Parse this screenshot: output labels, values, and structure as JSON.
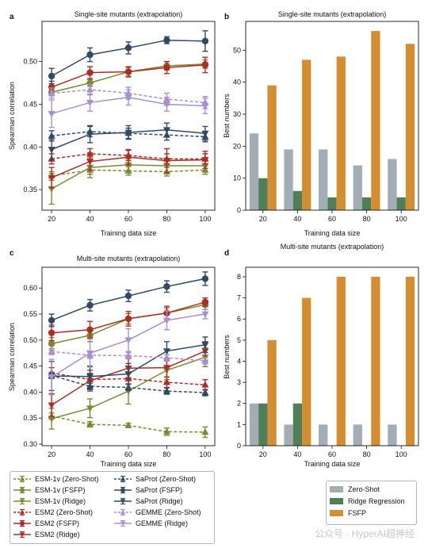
{
  "chart_data": [
    {
      "panel": "a",
      "type": "line",
      "title": "Single-site mutants (extrapolation)",
      "xlabel": "Training data size",
      "ylabel": "Spearman correlation",
      "x": [
        20,
        40,
        60,
        80,
        100
      ],
      "xlim": [
        15,
        105
      ],
      "ylim": [
        0.326,
        0.547
      ],
      "yticks": [
        0.35,
        0.4,
        0.45,
        0.5
      ],
      "yticklabels": [
        "0.35",
        "0.40",
        "0.45",
        "0.50"
      ],
      "xticks": [
        20,
        40,
        60,
        80,
        100
      ],
      "series": [
        {
          "name": "ESM-1v (Zero-Shot)",
          "values": [
            0.366,
            0.373,
            0.372,
            0.371,
            0.373
          ],
          "err": [
            0.005,
            0.005,
            0.005,
            0.005,
            0.005
          ],
          "color": "#7b8a2e",
          "dash": true,
          "marker": "tri-up"
        },
        {
          "name": "ESM-1v (FSFP)",
          "values": [
            0.464,
            0.475,
            0.488,
            0.495,
            0.497
          ],
          "err": [
            0.004,
            0.004,
            0.005,
            0.005,
            0.005
          ],
          "color": "#7b8a2e",
          "dash": false,
          "marker": "circle"
        },
        {
          "name": "ESM-1v (Ridge)",
          "values": [
            0.351,
            0.376,
            0.379,
            0.378,
            0.378
          ],
          "err": [
            0.018,
            0.012,
            0.007,
            0.007,
            0.007
          ],
          "color": "#7b8a2e",
          "dash": false,
          "marker": "tri-down"
        },
        {
          "name": "ESM2 (Zero-Shot)",
          "values": [
            0.386,
            0.392,
            0.39,
            0.386,
            0.386
          ],
          "err": [
            0.006,
            0.006,
            0.006,
            0.006,
            0.006
          ],
          "color": "#b22a24",
          "dash": true,
          "marker": "tri-up"
        },
        {
          "name": "ESM2 (FSFP)",
          "values": [
            0.47,
            0.487,
            0.488,
            0.493,
            0.496
          ],
          "err": [
            0.007,
            0.007,
            0.006,
            0.007,
            0.009
          ],
          "color": "#b22a24",
          "dash": false,
          "marker": "circle"
        },
        {
          "name": "ESM2 (Ridge)",
          "values": [
            0.364,
            0.383,
            0.388,
            0.384,
            0.385
          ],
          "err": [
            0.012,
            0.01,
            0.009,
            0.014,
            0.01
          ],
          "color": "#b22a24",
          "dash": false,
          "marker": "tri-down"
        },
        {
          "name": "SaProt (Zero-Shot)",
          "values": [
            0.413,
            0.418,
            0.416,
            0.414,
            0.412
          ],
          "err": [
            0.006,
            0.006,
            0.006,
            0.006,
            0.006
          ],
          "color": "#2f4a66",
          "dash": true,
          "marker": "tri-up"
        },
        {
          "name": "SaProt (FSFP)",
          "values": [
            0.483,
            0.508,
            0.516,
            0.525,
            0.524
          ],
          "err": [
            0.009,
            0.008,
            0.007,
            0.004,
            0.012
          ],
          "color": "#2f4a66",
          "dash": false,
          "marker": "circle"
        },
        {
          "name": "SaProt (Ridge)",
          "values": [
            0.397,
            0.415,
            0.417,
            0.42,
            0.416
          ],
          "err": [
            0.012,
            0.01,
            0.008,
            0.008,
            0.008
          ],
          "color": "#2f4a66",
          "dash": false,
          "marker": "tri-down"
        },
        {
          "name": "GEMME (Zero-Shot)",
          "values": [
            0.463,
            0.467,
            0.463,
            0.456,
            0.452
          ],
          "err": [
            0.006,
            0.006,
            0.007,
            0.007,
            0.007
          ],
          "color": "#a98fd0",
          "dash": true,
          "marker": "tri-up"
        },
        {
          "name": "GEMME (Ridge)",
          "values": [
            0.439,
            0.452,
            0.458,
            0.45,
            0.448
          ],
          "err": [
            0.016,
            0.01,
            0.009,
            0.008,
            0.009
          ],
          "color": "#a98fd0",
          "dash": false,
          "marker": "tri-down"
        }
      ]
    },
    {
      "panel": "b",
      "type": "bar",
      "title": "Single-site mutants (extrapolation)",
      "xlabel": "Training data size",
      "ylabel": "Best numbers",
      "categories": [
        "20",
        "40",
        "60",
        "80",
        "100"
      ],
      "ylim": [
        0,
        59
      ],
      "yticks": [
        0,
        10,
        20,
        30,
        40,
        50
      ],
      "series": [
        {
          "name": "Zero-Shot",
          "values": [
            24,
            19,
            19,
            14,
            16
          ],
          "color": "#a2adb5"
        },
        {
          "name": "Ridge Regression",
          "values": [
            10,
            6,
            4,
            4,
            4
          ],
          "color": "#4f7f58"
        },
        {
          "name": "FSFP",
          "values": [
            39,
            47,
            48,
            56,
            52
          ],
          "color": "#d38e31"
        }
      ]
    },
    {
      "panel": "c",
      "type": "line",
      "title": "Multi-site mutants (extrapolation)",
      "xlabel": "Training data size",
      "ylabel": "Spearman correlation",
      "x": [
        20,
        40,
        60,
        80,
        100
      ],
      "xlim": [
        15,
        105
      ],
      "ylim": [
        0.297,
        0.64
      ],
      "yticks": [
        0.3,
        0.35,
        0.4,
        0.45,
        0.5,
        0.55,
        0.6
      ],
      "yticklabels": [
        "0.30",
        "0.35",
        "0.40",
        "0.45",
        "0.50",
        "0.55",
        "0.60"
      ],
      "xticks": [
        20,
        40,
        60,
        80,
        100
      ],
      "series": [
        {
          "name": "ESM-1v (Zero-Shot)",
          "values": [
            0.354,
            0.338,
            0.336,
            0.324,
            0.323
          ],
          "err": [
            0.006,
            0.005,
            0.004,
            0.007,
            0.01
          ],
          "color": "#7b8a2e",
          "dash": true,
          "marker": "tri-up"
        },
        {
          "name": "ESM-1v (FSFP)",
          "values": [
            0.493,
            0.509,
            0.541,
            0.552,
            0.568
          ],
          "err": [
            0.012,
            0.012,
            0.01,
            0.01,
            0.009
          ],
          "color": "#7b8a2e",
          "dash": false,
          "marker": "circle"
        },
        {
          "name": "ESM-1v (Ridge)",
          "values": [
            0.349,
            0.369,
            0.402,
            0.442,
            0.467
          ],
          "err": [
            0.02,
            0.018,
            0.025,
            0.018,
            0.018
          ],
          "color": "#7b8a2e",
          "dash": false,
          "marker": "tri-down"
        },
        {
          "name": "ESM2 (Zero-Shot)",
          "values": [
            0.437,
            0.424,
            0.426,
            0.419,
            0.414
          ],
          "err": [
            0.01,
            0.012,
            0.01,
            0.01,
            0.01
          ],
          "color": "#b22a24",
          "dash": true,
          "marker": "tri-up"
        },
        {
          "name": "ESM2 (FSFP)",
          "values": [
            0.514,
            0.52,
            0.541,
            0.552,
            0.573
          ],
          "err": [
            0.015,
            0.016,
            0.014,
            0.013,
            0.008
          ],
          "color": "#b22a24",
          "dash": false,
          "marker": "circle"
        },
        {
          "name": "ESM2 (Ridge)",
          "values": [
            0.375,
            0.422,
            0.446,
            0.447,
            0.479
          ],
          "err": [
            0.022,
            0.02,
            0.018,
            0.018,
            0.018
          ],
          "color": "#b22a24",
          "dash": false,
          "marker": "tri-down"
        },
        {
          "name": "SaProt (Zero-Shot)",
          "values": [
            0.432,
            0.411,
            0.409,
            0.402,
            0.399
          ],
          "err": [
            0.006,
            0.006,
            0.006,
            0.006,
            0.006
          ],
          "color": "#2f4a66",
          "dash": true,
          "marker": "tri-up"
        },
        {
          "name": "SaProt (FSFP)",
          "values": [
            0.538,
            0.567,
            0.585,
            0.603,
            0.618
          ],
          "err": [
            0.012,
            0.011,
            0.011,
            0.011,
            0.013
          ],
          "color": "#2f4a66",
          "dash": false,
          "marker": "circle"
        },
        {
          "name": "SaProt (Ridge)",
          "values": [
            0.431,
            0.43,
            0.435,
            0.479,
            0.491
          ],
          "err": [
            0.028,
            0.02,
            0.02,
            0.018,
            0.015
          ],
          "color": "#2f4a66",
          "dash": false,
          "marker": "tri-down"
        },
        {
          "name": "GEMME (Zero-Shot)",
          "values": [
            0.478,
            0.471,
            0.47,
            0.466,
            0.46
          ],
          "err": [
            0.006,
            0.006,
            0.006,
            0.006,
            0.006
          ],
          "color": "#a98fd0",
          "dash": true,
          "marker": "tri-up"
        },
        {
          "name": "GEMME (Ridge)",
          "values": [
            0.429,
            0.475,
            0.5,
            0.538,
            0.55
          ],
          "err": [
            0.034,
            0.027,
            0.022,
            0.018,
            0.009
          ],
          "color": "#a98fd0",
          "dash": false,
          "marker": "tri-down"
        }
      ]
    },
    {
      "panel": "d",
      "type": "bar",
      "title": "Multi-site mutants (extrapolation)",
      "xlabel": "Training data size",
      "ylabel": "Best numbers",
      "categories": [
        "20",
        "40",
        "60",
        "80",
        "100"
      ],
      "ylim": [
        0,
        8.45
      ],
      "yticks": [
        0,
        1,
        2,
        3,
        4,
        5,
        6,
        7,
        8
      ],
      "series": [
        {
          "name": "Zero-Shot",
          "values": [
            2,
            1,
            1,
            1,
            1
          ],
          "color": "#a2adb5"
        },
        {
          "name": "Ridge Regression",
          "values": [
            2,
            2,
            0,
            0,
            0
          ],
          "color": "#4f7f58"
        },
        {
          "name": "FSFP",
          "values": [
            5,
            7,
            8,
            8,
            8
          ],
          "color": "#d38e31"
        }
      ]
    }
  ],
  "legend_lines": [
    {
      "label": "ESM-1v (Zero-Shot)",
      "color": "#7b8a2e",
      "dash": true,
      "marker": "tri-up"
    },
    {
      "label": "ESM-1v (FSFP)",
      "color": "#7b8a2e",
      "dash": false,
      "marker": "circle"
    },
    {
      "label": "ESM-1v (Ridge)",
      "color": "#7b8a2e",
      "dash": false,
      "marker": "tri-down"
    },
    {
      "label": "ESM2 (Zero-Shot)",
      "color": "#b22a24",
      "dash": true,
      "marker": "tri-up"
    },
    {
      "label": "ESM2 (FSFP)",
      "color": "#b22a24",
      "dash": false,
      "marker": "circle"
    },
    {
      "label": "ESM2 (Ridge)",
      "color": "#b22a24",
      "dash": false,
      "marker": "tri-down"
    },
    {
      "label": "SaProt (Zero-Shot)",
      "color": "#2f4a66",
      "dash": true,
      "marker": "tri-up"
    },
    {
      "label": "SaProt (FSFP)",
      "color": "#2f4a66",
      "dash": false,
      "marker": "circle"
    },
    {
      "label": "SaProt (Ridge)",
      "color": "#2f4a66",
      "dash": false,
      "marker": "tri-down"
    },
    {
      "label": "GEMME (Zero-Shot)",
      "color": "#a98fd0",
      "dash": true,
      "marker": "tri-up"
    },
    {
      "label": "GEMME (Ridge)",
      "color": "#a98fd0",
      "dash": false,
      "marker": "tri-down"
    }
  ],
  "legend_bars": [
    {
      "label": "Zero-Shot",
      "color": "#a2adb5"
    },
    {
      "label": "Ridge Regression",
      "color": "#4f7f58"
    },
    {
      "label": "FSFP",
      "color": "#d38e31"
    }
  ],
  "watermark": "公众号 · HyperAI超神经"
}
